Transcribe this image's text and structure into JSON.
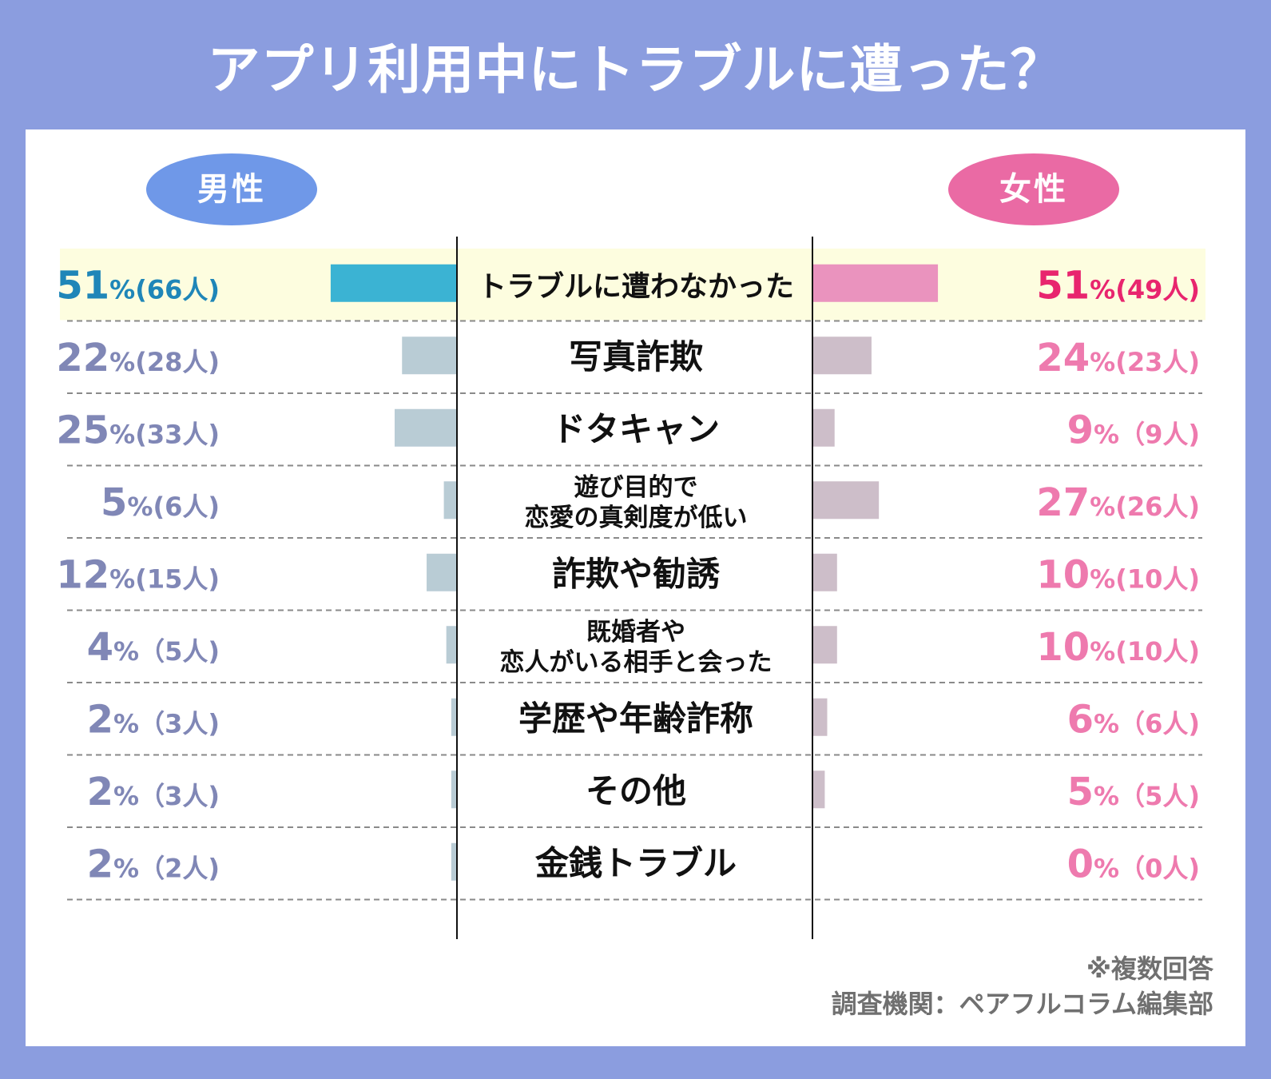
{
  "title": "アプリ利用中にトラブルに遭った？",
  "colors": {
    "background": "#8b9ddf",
    "male_pill": "#6f98e8",
    "female_pill": "#ea6aa4",
    "male_highlight_bar": "#3bb3d3",
    "female_highlight_bar": "#ea93be",
    "male_bar": "#b9ccd5",
    "female_bar": "#cdbec9",
    "male_highlight_text": "#1f86b8",
    "female_highlight_text": "#e8256e",
    "male_text": "#8087b6",
    "female_text": "#ee7aae",
    "highlight_row": "#fdfddf"
  },
  "legend": {
    "male": "男性",
    "female": "女性"
  },
  "footnote": {
    "note": "※複数回答",
    "source": "調査機関：ペアフルコラム編集部"
  },
  "chart_data": {
    "type": "bar",
    "orientation": "horizontal-butterfly",
    "title": "アプリ利用中にトラブルに遭った？",
    "categories": [
      [
        "トラブルに遭わなかった"
      ],
      [
        "写真詐欺"
      ],
      [
        "ドタキャン"
      ],
      [
        "遊び目的で",
        "恋愛の真剣度が低い"
      ],
      [
        "詐欺や勧誘"
      ],
      [
        "既婚者や",
        "恋人がいる相手と会った"
      ],
      [
        "学歴や年齢詐称"
      ],
      [
        "その他"
      ],
      [
        "金銭トラブル"
      ]
    ],
    "series": [
      {
        "name": "男性",
        "side": "left",
        "values": [
          51,
          22,
          25,
          5,
          12,
          4,
          2,
          2,
          2
        ],
        "counts": [
          66,
          28,
          33,
          6,
          15,
          5,
          3,
          3,
          2
        ],
        "labels": [
          "51%(66人)",
          "22%(28人)",
          "25%(33人)",
          "5%(6人)",
          "12%(15人)",
          "4%（5人)",
          "2%（3人)",
          "2%（3人)",
          "2%（2人)"
        ]
      },
      {
        "name": "女性",
        "side": "right",
        "values": [
          51,
          24,
          9,
          27,
          10,
          10,
          6,
          5,
          0
        ],
        "counts": [
          49,
          23,
          9,
          26,
          10,
          10,
          6,
          5,
          0
        ],
        "labels": [
          "51%(49人)",
          "24%(23人)",
          "9%（9人)",
          "27%(26人)",
          "10%(10人)",
          "10%(10人)",
          "6%（6人)",
          "5%（5人)",
          "0%（0人)"
        ]
      }
    ],
    "highlight_index": 0,
    "xlim": [
      0,
      100
    ],
    "unit": "%",
    "multiple_answers": true
  }
}
